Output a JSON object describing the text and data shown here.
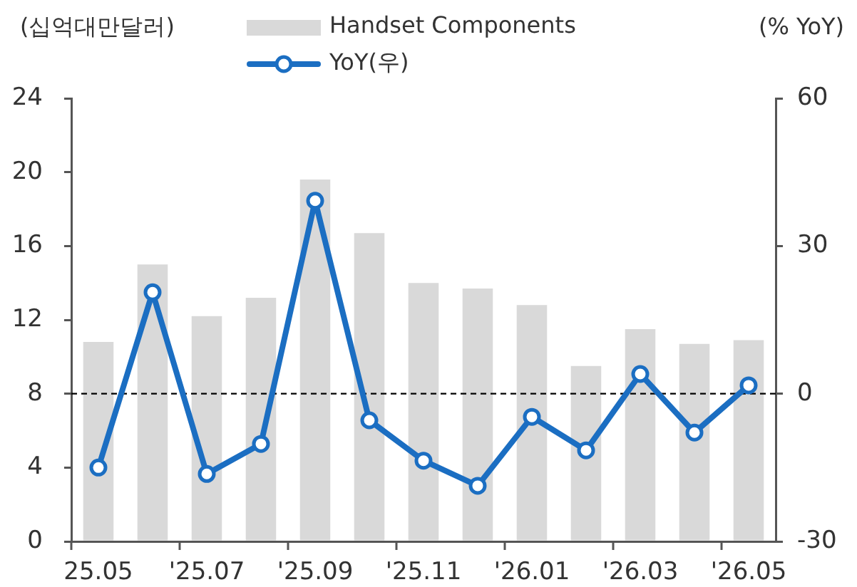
{
  "chart_data": {
    "type": "bar",
    "ylabel": "(십억대만달러)",
    "y2label": "(% YoY)",
    "categories": [
      "25.05",
      null,
      "'25.07",
      null,
      "'25.09",
      null,
      "'25.11",
      null,
      "'26.01",
      null,
      "'26.03",
      null,
      "'26.05"
    ],
    "series": [
      {
        "name": "Handset Components",
        "color": "#d9d9d9",
        "values": [
          10.8,
          15.0,
          12.2,
          13.2,
          19.6,
          16.7,
          14.0,
          13.7,
          12.8,
          9.5,
          11.5,
          10.7,
          10.9
        ]
      },
      {
        "name": "YoY(우)",
        "type": "line",
        "axis": "y2",
        "color": "#1b6ec2",
        "values": [
          -15,
          20.6,
          -16.3,
          -10.2,
          39.2,
          -5.4,
          -13.6,
          -18.7,
          -4.7,
          -11.5,
          4.0,
          -7.9,
          1.7
        ]
      }
    ],
    "ylim": [
      0,
      24
    ],
    "yticks": [
      0,
      4,
      8,
      12,
      16,
      20,
      24
    ],
    "y2lim": [
      -30,
      60
    ],
    "y2ticks": [
      -30,
      0,
      30,
      60
    ],
    "ref_lines": [
      {
        "axis": "y2",
        "value": 0,
        "color": "#000000",
        "line_style": "dashed"
      }
    ],
    "legend": "top",
    "grid": false,
    "marker": "circle",
    "line_style": "solid"
  }
}
